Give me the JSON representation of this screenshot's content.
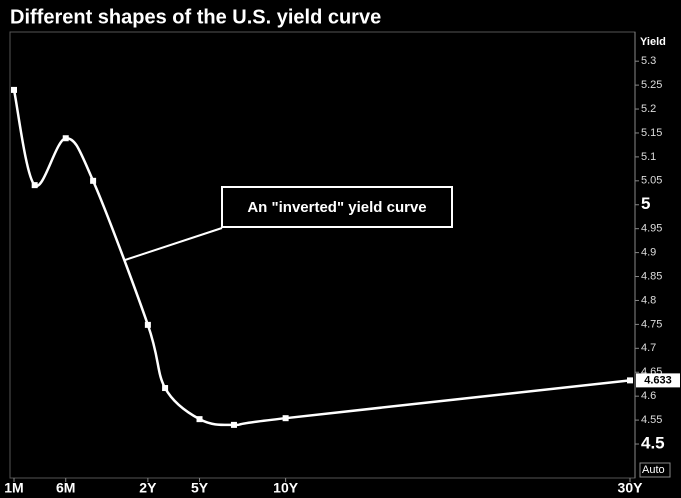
{
  "chart_data": {
    "type": "line",
    "title": "Different shapes of the U.S. yield curve",
    "y_label": "Yield",
    "annotation": "An \"inverted\" yield curve",
    "button": "Auto",
    "x": [
      0.0833,
      0.25,
      0.5,
      1,
      2,
      3,
      5,
      7,
      10,
      30
    ],
    "xlim": [
      0.0833,
      30
    ],
    "xticks": [
      {
        "value": 0.0833,
        "label": "1M"
      },
      {
        "value": 0.5,
        "label": "6M"
      },
      {
        "value": 2,
        "label": "2Y"
      },
      {
        "value": 5,
        "label": "5Y"
      },
      {
        "value": 10,
        "label": "10Y"
      },
      {
        "value": 30,
        "label": "30Y"
      }
    ],
    "series": [
      {
        "name": "Yield",
        "color": "#ffffff",
        "values": [
          5.24,
          5.041,
          5.139,
          5.05,
          4.749,
          4.617,
          4.552,
          4.54,
          4.554,
          4.633
        ]
      }
    ],
    "ylim": [
      4.429,
      5.361
    ],
    "yticks": [
      5.3,
      5.25,
      5.2,
      5.15,
      5.1,
      5.05,
      5,
      4.95,
      4.9,
      4.85,
      4.8,
      4.75,
      4.7,
      4.65,
      4.6,
      4.55,
      4.5
    ],
    "grid": false
  }
}
